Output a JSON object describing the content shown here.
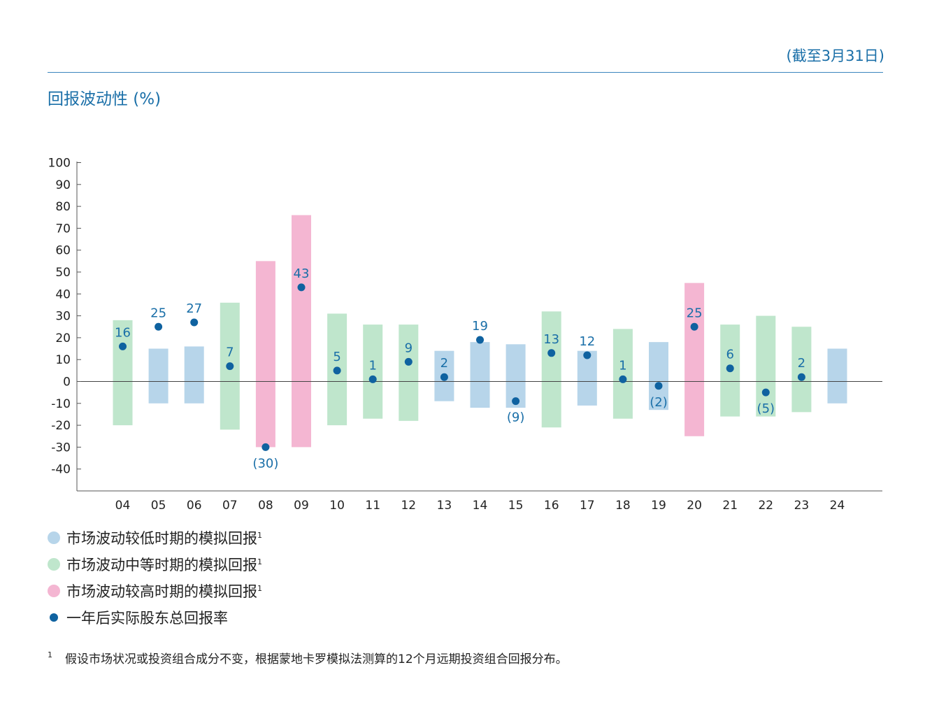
{
  "header": {
    "as_of": "(截至3月31日)"
  },
  "chart_title": "回报波动性 (%)",
  "colors": {
    "low": "#b7d5ea",
    "mid": "#bfe6cc",
    "high": "#f4b6d2",
    "dot": "#0f62a0",
    "label": "#1a6fa8"
  },
  "legend": [
    {
      "key": "low",
      "label": "市场波动较低时期的模拟回报",
      "sup": "1"
    },
    {
      "key": "mid",
      "label": "市场波动中等时期的模拟回报",
      "sup": "1"
    },
    {
      "key": "high",
      "label": "市场波动较高时期的模拟回报",
      "sup": "1"
    },
    {
      "key": "dot",
      "label": "一年后实际股东总回报率",
      "sup": ""
    }
  ],
  "footnote": {
    "mark": "1",
    "text": "假设市场状况或投资组合成分不变，根据蒙地卡罗模拟法测算的12个月远期投资组合回报分布。"
  },
  "chart_data": {
    "type": "bar",
    "ylim": [
      -50,
      100
    ],
    "yticks": [
      100,
      90,
      80,
      70,
      60,
      50,
      40,
      30,
      20,
      10,
      0,
      -10,
      -20,
      -30,
      -40
    ],
    "ytick_labels": [
      "100",
      "90",
      "80",
      "70",
      "60",
      "50",
      "40",
      "30",
      "20",
      "10",
      "0",
      "-10",
      "-20",
      "-30",
      "-40"
    ],
    "grid": false,
    "categories": [
      "04",
      "05",
      "06",
      "07",
      "08",
      "09",
      "10",
      "11",
      "12",
      "13",
      "14",
      "15",
      "16",
      "17",
      "18",
      "19",
      "20",
      "21",
      "22",
      "23",
      "24"
    ],
    "range_low": [
      -20,
      -10,
      -10,
      -22,
      -30,
      -30,
      -20,
      -17,
      -18,
      -9,
      -12,
      -12,
      -21,
      -11,
      -17,
      -13,
      -25,
      -16,
      -16,
      -14,
      -10
    ],
    "range_high": [
      28,
      15,
      16,
      36,
      55,
      76,
      31,
      26,
      26,
      14,
      18,
      17,
      32,
      14,
      24,
      18,
      45,
      26,
      30,
      25,
      15
    ],
    "volatility": [
      "mid",
      "low",
      "low",
      "mid",
      "high",
      "high",
      "mid",
      "mid",
      "mid",
      "low",
      "low",
      "low",
      "mid",
      "low",
      "mid",
      "low",
      "high",
      "mid",
      "mid",
      "mid",
      "low"
    ],
    "actual_tsr": [
      16,
      25,
      27,
      7,
      -30,
      43,
      5,
      1,
      9,
      2,
      19,
      -9,
      13,
      12,
      1,
      -2,
      25,
      6,
      -5,
      2,
      null
    ],
    "actual_tsr_labels": [
      "16",
      "25",
      "27",
      "7",
      "(30)",
      "43",
      "5",
      "1",
      "9",
      "2",
      "19",
      "(9)",
      "13",
      "12",
      "1",
      "(2)",
      "25",
      "6",
      "(5)",
      "2",
      ""
    ]
  }
}
